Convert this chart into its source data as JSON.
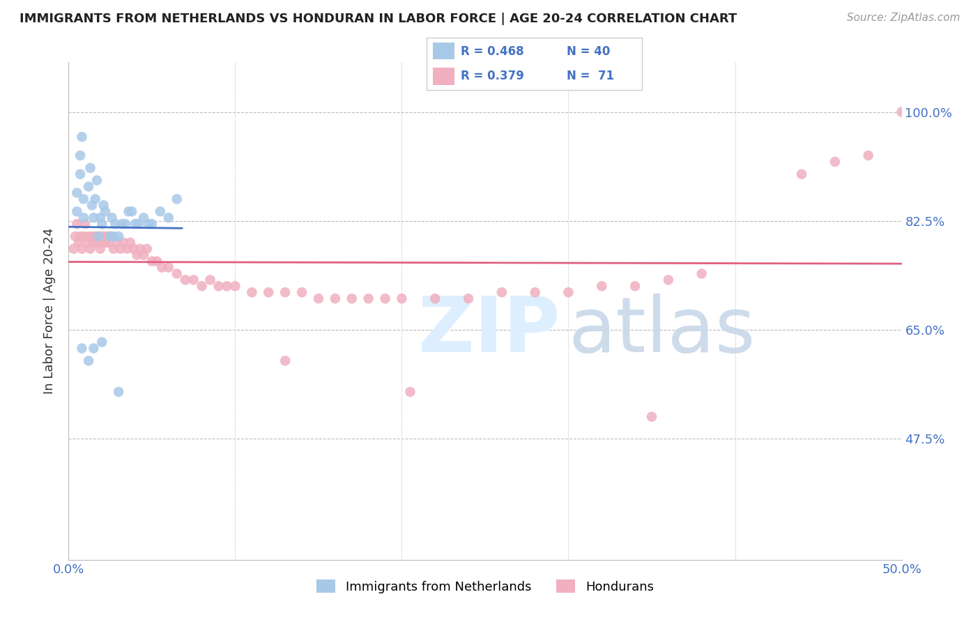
{
  "title": "IMMIGRANTS FROM NETHERLANDS VS HONDURAN IN LABOR FORCE | AGE 20-24 CORRELATION CHART",
  "source_text": "Source: ZipAtlas.com",
  "ylabel": "In Labor Force | Age 20-24",
  "xlim": [
    0.0,
    0.5
  ],
  "ylim": [
    0.28,
    1.08
  ],
  "xticks": [
    0.0,
    0.1,
    0.2,
    0.3,
    0.4,
    0.5
  ],
  "xticklabels": [
    "0.0%",
    "",
    "",
    "",
    "",
    "50.0%"
  ],
  "yticks": [
    0.475,
    0.65,
    0.825,
    1.0
  ],
  "yticklabels": [
    "47.5%",
    "65.0%",
    "82.5%",
    "100.0%"
  ],
  "blue_color": "#A8C8E8",
  "pink_color": "#F0B0C0",
  "blue_line_color": "#4472C4",
  "pink_line_color": "#E06080",
  "blue_x": [
    0.005,
    0.005,
    0.007,
    0.007,
    0.008,
    0.009,
    0.009,
    0.012,
    0.013,
    0.014,
    0.015,
    0.016,
    0.017,
    0.018,
    0.019,
    0.02,
    0.021,
    0.022,
    0.025,
    0.026,
    0.027,
    0.028,
    0.03,
    0.032,
    0.034,
    0.036,
    0.038,
    0.04,
    0.042,
    0.045,
    0.048,
    0.05,
    0.055,
    0.06,
    0.065,
    0.008,
    0.012,
    0.015,
    0.02,
    0.03
  ],
  "blue_y": [
    0.84,
    0.87,
    0.9,
    0.93,
    0.96,
    0.83,
    0.86,
    0.88,
    0.91,
    0.85,
    0.83,
    0.86,
    0.89,
    0.8,
    0.83,
    0.82,
    0.85,
    0.84,
    0.8,
    0.83,
    0.8,
    0.82,
    0.8,
    0.82,
    0.82,
    0.84,
    0.84,
    0.82,
    0.82,
    0.83,
    0.82,
    0.82,
    0.84,
    0.83,
    0.86,
    0.62,
    0.6,
    0.62,
    0.63,
    0.55
  ],
  "pink_x": [
    0.003,
    0.004,
    0.005,
    0.006,
    0.007,
    0.008,
    0.009,
    0.01,
    0.011,
    0.012,
    0.013,
    0.014,
    0.015,
    0.016,
    0.017,
    0.018,
    0.019,
    0.02,
    0.021,
    0.022,
    0.023,
    0.024,
    0.025,
    0.027,
    0.029,
    0.031,
    0.033,
    0.035,
    0.037,
    0.039,
    0.041,
    0.043,
    0.045,
    0.047,
    0.05,
    0.053,
    0.056,
    0.06,
    0.065,
    0.07,
    0.075,
    0.08,
    0.085,
    0.09,
    0.095,
    0.1,
    0.11,
    0.12,
    0.13,
    0.14,
    0.15,
    0.16,
    0.17,
    0.18,
    0.19,
    0.2,
    0.22,
    0.24,
    0.26,
    0.28,
    0.3,
    0.32,
    0.34,
    0.36,
    0.38,
    0.44,
    0.46,
    0.48,
    0.5,
    0.13,
    0.205,
    0.35
  ],
  "pink_y": [
    0.78,
    0.8,
    0.82,
    0.79,
    0.8,
    0.78,
    0.8,
    0.82,
    0.79,
    0.8,
    0.78,
    0.8,
    0.79,
    0.8,
    0.79,
    0.8,
    0.78,
    0.79,
    0.8,
    0.79,
    0.8,
    0.79,
    0.8,
    0.78,
    0.79,
    0.78,
    0.79,
    0.78,
    0.79,
    0.78,
    0.77,
    0.78,
    0.77,
    0.78,
    0.76,
    0.76,
    0.75,
    0.75,
    0.74,
    0.73,
    0.73,
    0.72,
    0.73,
    0.72,
    0.72,
    0.72,
    0.71,
    0.71,
    0.71,
    0.71,
    0.7,
    0.7,
    0.7,
    0.7,
    0.7,
    0.7,
    0.7,
    0.7,
    0.71,
    0.71,
    0.71,
    0.72,
    0.72,
    0.73,
    0.74,
    0.9,
    0.92,
    0.93,
    1.0,
    0.6,
    0.55,
    0.51
  ]
}
